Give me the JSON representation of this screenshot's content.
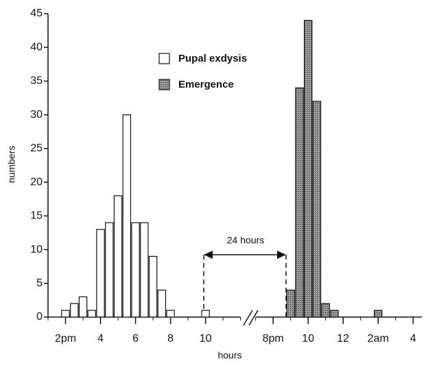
{
  "chart_data": {
    "type": "bar",
    "xlabel": "hours",
    "ylabel": "numbers",
    "series": [
      {
        "name": "Pupal exdysis",
        "color": "#ffffff",
        "x": [
          14,
          14.5,
          15,
          15.5,
          16,
          16.5,
          17,
          17.5,
          18,
          18.5,
          19,
          19.5,
          20,
          22
        ],
        "values": [
          1,
          2,
          3,
          1,
          13,
          14,
          18,
          30,
          14,
          14,
          9,
          4,
          1,
          1
        ]
      },
      {
        "name": "Emergence",
        "color": "#8c8c8c",
        "x": [
          45,
          45.5,
          46,
          46.5,
          47,
          47.5,
          50
        ],
        "values": [
          4,
          34,
          44,
          32,
          2,
          1,
          1
        ]
      }
    ],
    "xlim": [
      13,
      52.5
    ],
    "xbreak": [
      24,
      43
    ],
    "xticks": [
      {
        "value": 14,
        "label": "2pm"
      },
      {
        "value": 16,
        "label": "4"
      },
      {
        "value": 18,
        "label": "6"
      },
      {
        "value": 20,
        "label": "8"
      },
      {
        "value": 22,
        "label": "10"
      },
      {
        "value": 44,
        "label": "8pm"
      },
      {
        "value": 46,
        "label": "10"
      },
      {
        "value": 48,
        "label": "12"
      },
      {
        "value": 50,
        "label": "2am"
      },
      {
        "value": 52,
        "label": "4"
      }
    ],
    "ylim": [
      0,
      45
    ],
    "yticks": [
      0,
      5,
      10,
      15,
      20,
      25,
      30,
      35,
      40,
      45
    ],
    "annotation": "24 hours",
    "legend": "upper-center"
  }
}
